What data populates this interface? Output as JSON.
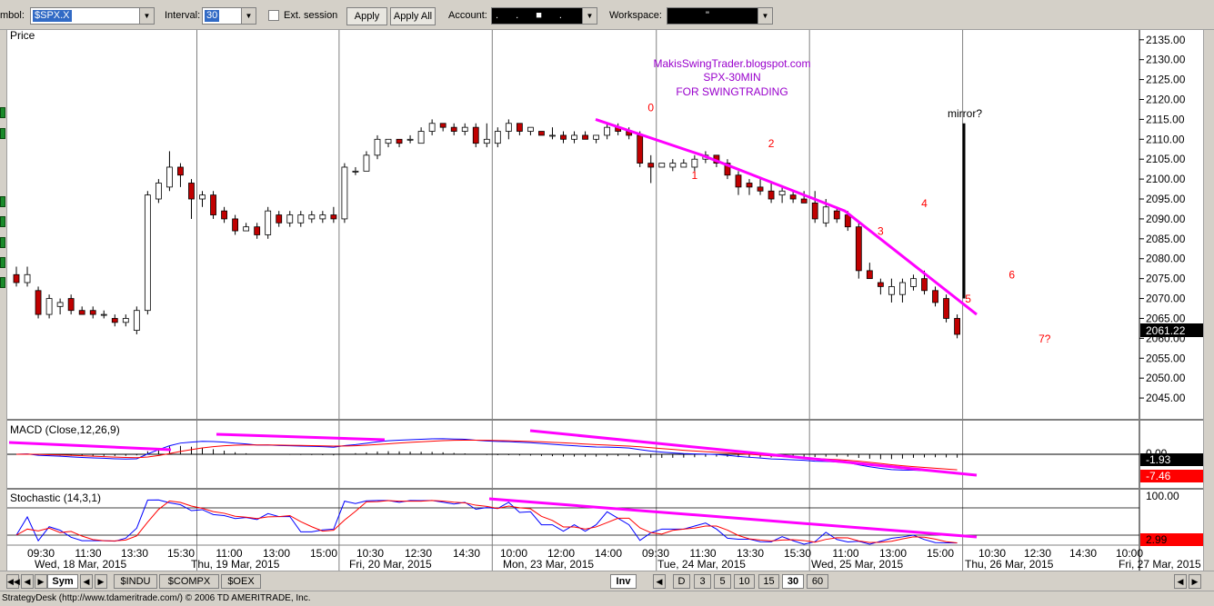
{
  "toolbar": {
    "symbol_label": "mbol:",
    "symbol_value": "$SPX.X",
    "interval_label": "Interval:",
    "interval_value": "30",
    "ext_session_label": "Ext. session",
    "apply_label": "Apply",
    "apply_all_label": "Apply All",
    "account_label": "Account:",
    "account_value": ". . ■ . ",
    "workspace_label": "Workspace:",
    "workspace_value": "\""
  },
  "price_panel": {
    "title": "Price",
    "y_ticks": [
      "2135.00",
      "2130.00",
      "2125.00",
      "2120.00",
      "2115.00",
      "2110.00",
      "2105.00",
      "2100.00",
      "2095.00",
      "2090.00",
      "2085.00",
      "2080.00",
      "2075.00",
      "2070.00",
      "2065.00",
      "2060.00",
      "2055.00",
      "2050.00",
      "2045.00"
    ],
    "last_price": "2061.22",
    "annotation_lines": [
      "MakisSwingTrader.blogspot.com",
      "SPX-30MIN",
      "FOR SWINGTRADING"
    ],
    "mirror_label": "mirror?",
    "wave_labels": [
      {
        "text": "0",
        "x": 58,
        "y": 2117
      },
      {
        "text": "1",
        "x": 62,
        "y": 2100
      },
      {
        "text": "2",
        "x": 69,
        "y": 2108
      },
      {
        "text": "3",
        "x": 79,
        "y": 2086
      },
      {
        "text": "4",
        "x": 83,
        "y": 2093
      },
      {
        "text": "5",
        "x": 87,
        "y": 2069
      },
      {
        "text": "6",
        "x": 91,
        "y": 2075
      },
      {
        "text": "7?",
        "x": 94,
        "y": 2059
      }
    ]
  },
  "macd_panel": {
    "title": "MACD (Close,12,26,9)",
    "y_ticks": [
      "0.00"
    ],
    "value_1": "-1.93",
    "value_2": "-7.46"
  },
  "stoch_panel": {
    "title": "Stochastic (14,3,1)",
    "y_ticks": [
      "100.00"
    ],
    "value": "2.99"
  },
  "time_axis": {
    "time_labels": [
      "09:30",
      "11:30",
      "13:30",
      "15:30",
      "11:00",
      "13:00",
      "15:00",
      "10:30",
      "12:30",
      "14:30",
      "10:00",
      "12:00",
      "14:00",
      "09:30",
      "11:30",
      "13:30",
      "15:30",
      "11:00",
      "13:00",
      "15:00",
      "10:30",
      "12:30",
      "14:30",
      "10:00"
    ],
    "date_labels": [
      "Wed, 18 Mar, 2015",
      "Thu, 19 Mar, 2015",
      "Fri, 20 Mar, 2015",
      "Mon, 23 Mar, 2015",
      "Tue, 24 Mar, 2015",
      "Wed, 25 Mar, 2015",
      "Thu, 26 Mar, 2015",
      "Fri, 27 Mar, 2015"
    ]
  },
  "bottom_tabs": {
    "sym": "Sym",
    "indu": "$INDU",
    "compx": "$COMPX",
    "oex": "$OEX",
    "inv": "Inv",
    "intervals": [
      "D",
      "3",
      "5",
      "10",
      "15",
      "30",
      "60"
    ]
  },
  "status_text": "StrategyDesk (http://www.tdameritrade.com/) © 2006 TD AMERITRADE, Inc.",
  "colors": {
    "up": "#ffffff",
    "down": "#c00000",
    "trendline": "#ff00ff",
    "annotation": "#9900cc",
    "wave": "#ff0000",
    "macd_line": "#0000ff",
    "signal_line": "#ff0000"
  },
  "chart_data": {
    "type": "candlestick",
    "title": "",
    "ylabel": "Price",
    "ylim": [
      2040,
      2137
    ],
    "bars": [
      [
        2076,
        2078,
        2073,
        2074
      ],
      [
        2074,
        2078,
        2073,
        2076
      ],
      [
        2072,
        2073,
        2065,
        2066
      ],
      [
        2066,
        2071,
        2065,
        2070
      ],
      [
        2068,
        2070,
        2066,
        2069
      ],
      [
        2070,
        2071,
        2066,
        2067
      ],
      [
        2067,
        2068,
        2066,
        2066
      ],
      [
        2067,
        2068,
        2065,
        2066
      ],
      [
        2066,
        2067,
        2065,
        2066
      ],
      [
        2065,
        2066,
        2063,
        2064
      ],
      [
        2064,
        2066,
        2063,
        2065
      ],
      [
        2062,
        2068,
        2061,
        2067
      ],
      [
        2067,
        2097,
        2066,
        2096
      ],
      [
        2095,
        2100,
        2094,
        2099
      ],
      [
        2098,
        2107,
        2097,
        2103
      ],
      [
        2103,
        2104,
        2098,
        2101
      ],
      [
        2099,
        2100,
        2090,
        2095
      ],
      [
        2095,
        2097,
        2093,
        2096
      ],
      [
        2096,
        2097,
        2090,
        2091
      ],
      [
        2092,
        2093,
        2089,
        2090
      ],
      [
        2090,
        2091,
        2086,
        2087
      ],
      [
        2087,
        2089,
        2087,
        2088
      ],
      [
        2088,
        2089,
        2085,
        2086
      ],
      [
        2086,
        2093,
        2085,
        2092
      ],
      [
        2091,
        2092,
        2088,
        2089
      ],
      [
        2089,
        2092,
        2088,
        2091
      ],
      [
        2089,
        2092,
        2088,
        2091
      ],
      [
        2090,
        2092,
        2089,
        2091
      ],
      [
        2090,
        2092,
        2089,
        2091
      ],
      [
        2091,
        2093,
        2089,
        2090
      ],
      [
        2090,
        2104,
        2089,
        2103
      ],
      [
        2102,
        2103,
        2101,
        2102
      ],
      [
        2102,
        2107,
        2102,
        2106
      ],
      [
        2106,
        2111,
        2105,
        2110
      ],
      [
        2109,
        2110,
        2108,
        2110
      ],
      [
        2110,
        2110,
        2108,
        2109
      ],
      [
        2110,
        2111,
        2109,
        2110
      ],
      [
        2109,
        2113,
        2109,
        2112
      ],
      [
        2112,
        2115,
        2111,
        2114
      ],
      [
        2114,
        2114,
        2112,
        2113
      ],
      [
        2113,
        2114,
        2111,
        2112
      ],
      [
        2112,
        2114,
        2111,
        2113
      ],
      [
        2113,
        2114,
        2108,
        2109
      ],
      [
        2109,
        2114,
        2108,
        2110
      ],
      [
        2109,
        2113,
        2108,
        2112
      ],
      [
        2112,
        2115,
        2110,
        2114
      ],
      [
        2114,
        2114,
        2111,
        2112
      ],
      [
        2112,
        2113,
        2111,
        2113
      ],
      [
        2112,
        2112,
        2111,
        2111
      ],
      [
        2111,
        2113,
        2110,
        2111
      ],
      [
        2111,
        2112,
        2109,
        2110
      ],
      [
        2110,
        2112,
        2109,
        2111
      ],
      [
        2111,
        2112,
        2110,
        2110
      ],
      [
        2110,
        2111,
        2109,
        2111
      ],
      [
        2111,
        2114,
        2110,
        2113
      ],
      [
        2113,
        2114,
        2111,
        2112
      ],
      [
        2112,
        2113,
        2110,
        2111
      ],
      [
        2111,
        2112,
        2103,
        2104
      ],
      [
        2104,
        2106,
        2099,
        2103
      ],
      [
        2103,
        2104,
        2103,
        2104
      ],
      [
        2103,
        2105,
        2102,
        2104
      ],
      [
        2103,
        2105,
        2103,
        2104
      ],
      [
        2103,
        2106,
        2102,
        2105
      ],
      [
        2105,
        2107,
        2104,
        2106
      ],
      [
        2106,
        2106,
        2103,
        2104
      ],
      [
        2104,
        2105,
        2100,
        2101
      ],
      [
        2101,
        2102,
        2096,
        2098
      ],
      [
        2099,
        2100,
        2096,
        2098
      ],
      [
        2098,
        2100,
        2096,
        2097
      ],
      [
        2097,
        2099,
        2094,
        2095
      ],
      [
        2096,
        2098,
        2094,
        2097
      ],
      [
        2096,
        2097,
        2094,
        2095
      ],
      [
        2095,
        2097,
        2094,
        2094
      ],
      [
        2094,
        2097,
        2089,
        2090
      ],
      [
        2089,
        2095,
        2088,
        2093
      ],
      [
        2092,
        2093,
        2089,
        2090
      ],
      [
        2091,
        2092,
        2087,
        2088
      ],
      [
        2088,
        2089,
        2075,
        2077
      ],
      [
        2077,
        2079,
        2075,
        2075
      ],
      [
        2074,
        2075,
        2071,
        2073
      ],
      [
        2071,
        2075,
        2069,
        2073
      ],
      [
        2071,
        2075,
        2069,
        2074
      ],
      [
        2073,
        2076,
        2072,
        2075
      ],
      [
        2075,
        2077,
        2071,
        2072
      ],
      [
        2072,
        2073,
        2068,
        2069
      ],
      [
        2070,
        2071,
        2064,
        2065
      ],
      [
        2065,
        2066,
        2060,
        2061
      ]
    ]
  }
}
